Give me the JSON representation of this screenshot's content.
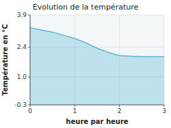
{
  "chart_data": {
    "type": "area",
    "title": "Evolution de la température",
    "xlabel": "heure par heure",
    "ylabel": "Température en °C",
    "x": [
      0,
      0.25,
      0.5,
      0.75,
      1.0,
      1.25,
      1.5,
      1.75,
      2.0,
      2.5,
      3.0
    ],
    "values": [
      3.3,
      3.2,
      3.1,
      2.95,
      2.8,
      2.6,
      2.35,
      2.15,
      2.0,
      1.95,
      1.95
    ],
    "color": "#5bb8d4",
    "xlim": [
      0,
      3
    ],
    "ylim": [
      -0.3,
      3.9
    ],
    "xticks": [
      0,
      1,
      2,
      3
    ],
    "yticks": [
      -0.3,
      {
        "value": 1.0,
        "label": "1.0"
      },
      2.4,
      3.9
    ],
    "grid": true
  }
}
